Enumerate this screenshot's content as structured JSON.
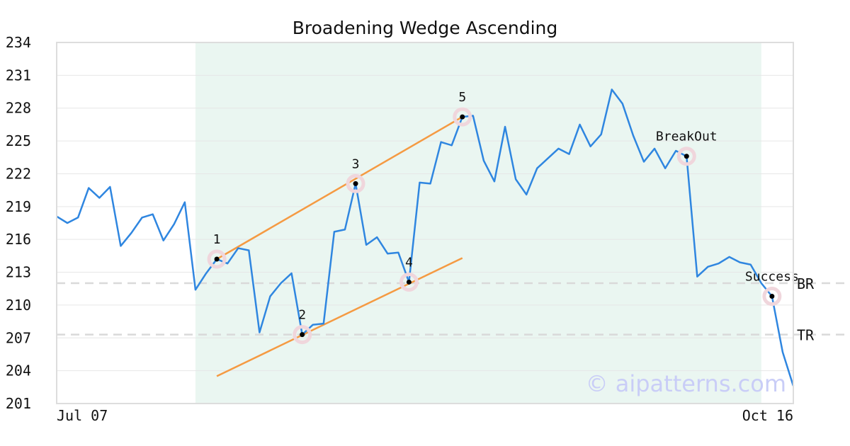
{
  "chart_data": {
    "type": "line",
    "title": "Broadening Wedge Ascending",
    "xlabel": "",
    "ylabel": "",
    "ylim": [
      201,
      234
    ],
    "yticks": [
      201,
      204,
      207,
      210,
      213,
      216,
      219,
      222,
      225,
      228,
      231,
      234
    ],
    "x_tick_labels": [
      "Jul 07",
      "Oct 16"
    ],
    "grid": true,
    "watermark": "© aipatterns.com",
    "colors": {
      "line": "#2f86e0",
      "trend": "#f59a42",
      "highlight": "#eaf6f1",
      "marker_halo": "#f0d6dc",
      "ref_line": "#d9d9d9"
    },
    "highlight_range": [
      13,
      66
    ],
    "series": [
      {
        "values": [
          218.1,
          217.5,
          218.0,
          220.7,
          219.8,
          220.8,
          215.4,
          216.6,
          218.0,
          218.3,
          215.9,
          217.4,
          219.4,
          211.4,
          212.9,
          214.2,
          213.8,
          215.2,
          215.0,
          207.5,
          210.8,
          212.0,
          212.9,
          207.3,
          208.2,
          208.3,
          216.7,
          216.9,
          221.1,
          215.5,
          216.2,
          214.7,
          214.8,
          212.1,
          221.2,
          221.1,
          224.9,
          224.6,
          227.2,
          227.3,
          223.2,
          221.3,
          226.3,
          221.5,
          220.1,
          222.5,
          223.4,
          224.3,
          223.8,
          226.5,
          224.5,
          225.6,
          229.7,
          228.4,
          225.5,
          223.1,
          224.3,
          222.5,
          224.1,
          223.6,
          212.6,
          213.5,
          213.8,
          214.4,
          213.9,
          213.7,
          212.0,
          210.8,
          205.7,
          202.6
        ]
      }
    ],
    "trendlines": [
      {
        "x1": 15,
        "y1": 214.2,
        "x2": 38,
        "y2": 227.2
      },
      {
        "x1": 15,
        "y1": 203.5,
        "x2": 38,
        "y2": 214.3
      }
    ],
    "points": [
      {
        "label": "1",
        "x": 15,
        "y": 214.2,
        "label_pos": "above"
      },
      {
        "label": "2",
        "x": 23,
        "y": 207.3,
        "label_pos": "above"
      },
      {
        "label": "3",
        "x": 28,
        "y": 221.1,
        "label_pos": "above"
      },
      {
        "label": "4",
        "x": 33,
        "y": 212.1,
        "label_pos": "above"
      },
      {
        "label": "5",
        "x": 38,
        "y": 227.2,
        "label_pos": "above"
      },
      {
        "label": "BreakOut",
        "x": 59,
        "y": 223.6,
        "label_pos": "above"
      },
      {
        "label": "Success",
        "x": 67,
        "y": 210.8,
        "label_pos": "above"
      }
    ],
    "reference_lines": [
      {
        "label": "BR",
        "y": 212.0
      },
      {
        "label": "TR",
        "y": 207.3
      }
    ]
  }
}
